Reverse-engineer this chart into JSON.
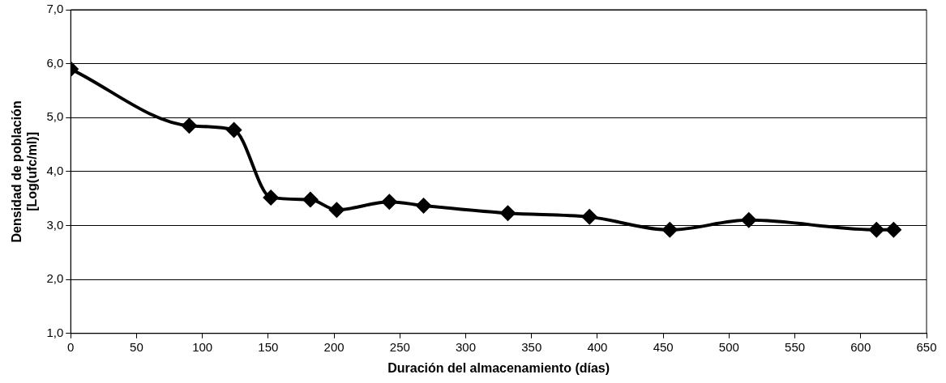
{
  "chart_data": {
    "type": "line",
    "xlabel": "Duración del almacenamiento (días)",
    "ylabel": "Densidad de población [Log(ufc/ml)]",
    "x": [
      0,
      90,
      124,
      152,
      182,
      202,
      242,
      268,
      332,
      394,
      455,
      515,
      612,
      625
    ],
    "series": [
      {
        "color": "#000000",
        "values": [
          5.9,
          4.85,
          4.77,
          3.52,
          3.48,
          3.29,
          3.44,
          3.37,
          3.23,
          3.16,
          2.92,
          3.1,
          2.92,
          2.92
        ]
      }
    ],
    "xlim": [
      0,
      650
    ],
    "xticks": [
      0,
      50,
      100,
      150,
      200,
      250,
      300,
      350,
      400,
      450,
      500,
      550,
      600,
      650
    ],
    "ylim": [
      1,
      7
    ],
    "yticks": [
      {
        "value": 1,
        "label": "1,0"
      },
      {
        "value": 2,
        "label": "2,0"
      },
      {
        "value": 3,
        "label": "3,0"
      },
      {
        "value": 4,
        "label": "4,0"
      },
      {
        "value": 5,
        "label": "5,0"
      },
      {
        "value": 6,
        "label": "6,0"
      },
      {
        "value": 7,
        "label": "7,0"
      }
    ],
    "grid": "y",
    "legend": false,
    "marker": "diamond",
    "line_style": "solid"
  }
}
